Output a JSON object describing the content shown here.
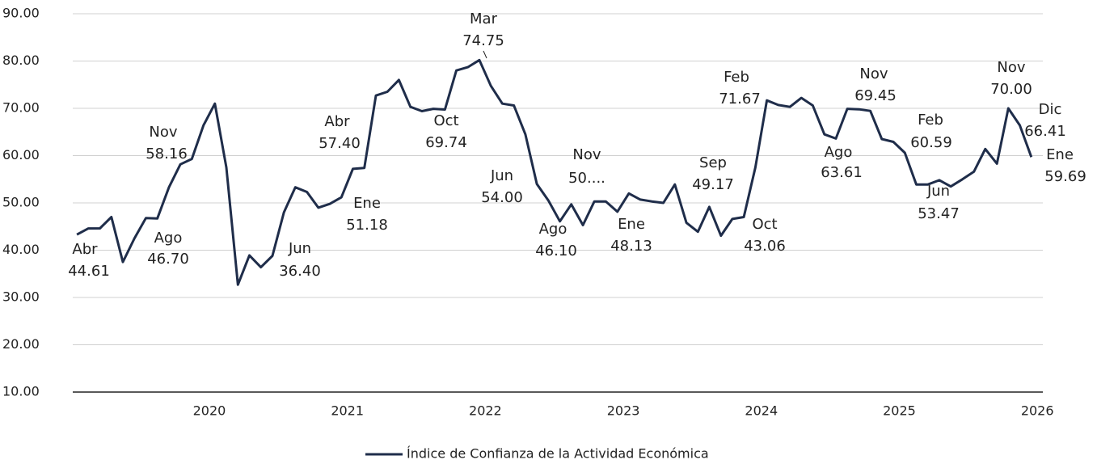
{
  "chart_data": {
    "type": "line",
    "xlim": [
      2019.01,
      2026.04
    ],
    "xticks": [
      2020,
      2021,
      2022,
      2023,
      2024,
      2025,
      2026
    ],
    "ylim": [
      10,
      90
    ],
    "yticks": [
      {
        "value": 10,
        "label": "10.00"
      },
      {
        "value": 20,
        "label": "20.00"
      },
      {
        "value": 30,
        "label": "30.00"
      },
      {
        "value": 40,
        "label": "40.00"
      },
      {
        "value": 50,
        "label": "50.00"
      },
      {
        "value": 60,
        "label": "60.00"
      },
      {
        "value": 70,
        "label": "70.00"
      },
      {
        "value": 80,
        "label": "80.00"
      },
      {
        "value": 90,
        "label": "90.00"
      }
    ],
    "grid": true,
    "legend": "bottom",
    "x": [
      2019.04,
      2019.123,
      2019.207,
      2019.29,
      2019.373,
      2019.457,
      2019.54,
      2019.623,
      2019.707,
      2019.79,
      2019.873,
      2019.957,
      2020.04,
      2020.123,
      2020.207,
      2020.29,
      2020.373,
      2020.457,
      2020.54,
      2020.623,
      2020.707,
      2020.79,
      2020.873,
      2020.957,
      2021.04,
      2021.123,
      2021.207,
      2021.29,
      2021.373,
      2021.457,
      2021.54,
      2021.623,
      2021.707,
      2021.79,
      2021.873,
      2021.957,
      2022.04,
      2022.123,
      2022.207,
      2022.29,
      2022.373,
      2022.457,
      2022.54,
      2022.623,
      2022.707,
      2022.79,
      2022.873,
      2022.957,
      2023.04,
      2023.123,
      2023.207,
      2023.29,
      2023.373,
      2023.457,
      2023.54,
      2023.623,
      2023.707,
      2023.79,
      2023.873,
      2023.957,
      2024.04,
      2024.123,
      2024.207,
      2024.29,
      2024.373,
      2024.457,
      2024.54,
      2024.623,
      2024.707,
      2024.79,
      2024.873,
      2024.957,
      2025.04,
      2025.123,
      2025.207,
      2025.29,
      2025.373,
      2025.457,
      2025.54,
      2025.623,
      2025.707,
      2025.79,
      2025.873,
      2025.957
    ],
    "series": [
      {
        "name": "Índice de Confianza de la Actividad Económica",
        "color": "#1f2d4a",
        "values": [
          43.3,
          44.6,
          44.61,
          47.0,
          37.5,
          42.5,
          46.8,
          46.7,
          53.3,
          58.16,
          59.3,
          66.4,
          71.0,
          57.5,
          32.7,
          38.9,
          36.4,
          38.8,
          48.0,
          53.3,
          52.3,
          49.0,
          49.8,
          51.18,
          57.2,
          57.4,
          72.7,
          73.5,
          76.0,
          70.3,
          69.4,
          69.9,
          69.74,
          78.0,
          78.7,
          80.2,
          74.75,
          71.0,
          70.6,
          64.5,
          54.0,
          50.5,
          46.1,
          49.7,
          45.3,
          50.3,
          50.3,
          48.13,
          52.0,
          50.7,
          50.3,
          50.0,
          53.9,
          45.8,
          43.9,
          49.17,
          43.06,
          46.6,
          47.0,
          57.5,
          71.67,
          70.7,
          70.3,
          72.2,
          70.6,
          64.5,
          63.61,
          69.9,
          69.8,
          69.45,
          63.5,
          62.9,
          60.59,
          53.9,
          53.9,
          54.8,
          53.47,
          55.0,
          56.6,
          61.4,
          58.3,
          70.0,
          66.41,
          59.69
        ],
        "value_labels": [
          null,
          null,
          "44.61",
          null,
          null,
          null,
          null,
          "46.70",
          null,
          "58.16",
          null,
          null,
          null,
          null,
          null,
          null,
          "36.40",
          null,
          null,
          null,
          null,
          null,
          null,
          "51.18",
          null,
          "57.40",
          null,
          null,
          null,
          null,
          null,
          null,
          "69.74",
          null,
          null,
          null,
          "74.75",
          null,
          null,
          null,
          "54.00",
          null,
          "46.10",
          null,
          null,
          "50....",
          null,
          "48.13",
          null,
          null,
          null,
          null,
          null,
          null,
          null,
          "49.17",
          "43.06",
          null,
          null,
          null,
          "71.67",
          null,
          null,
          null,
          null,
          null,
          "63.61",
          null,
          null,
          "69.45",
          null,
          null,
          "60.59",
          null,
          null,
          null,
          "53.47",
          null,
          null,
          null,
          null,
          "70.00",
          "66.41",
          "59.69"
        ],
        "month_labels": [
          null,
          null,
          "Abr",
          null,
          null,
          null,
          null,
          "Ago",
          null,
          "Nov",
          null,
          null,
          null,
          null,
          null,
          null,
          "Jun",
          null,
          null,
          null,
          null,
          null,
          null,
          "Ene",
          null,
          "Abr",
          null,
          null,
          null,
          null,
          null,
          null,
          "Oct",
          null,
          null,
          null,
          "Mar",
          null,
          null,
          null,
          "Jun",
          null,
          "Ago",
          null,
          null,
          "Nov",
          null,
          "Ene",
          null,
          null,
          null,
          null,
          null,
          null,
          null,
          "Sep",
          "Oct",
          null,
          null,
          null,
          "Feb",
          null,
          null,
          null,
          null,
          null,
          "Ago",
          null,
          null,
          "Nov",
          null,
          null,
          "Feb",
          null,
          null,
          null,
          "Jun",
          null,
          null,
          null,
          null,
          "Nov",
          "Dic",
          "Ene"
        ]
      }
    ]
  }
}
